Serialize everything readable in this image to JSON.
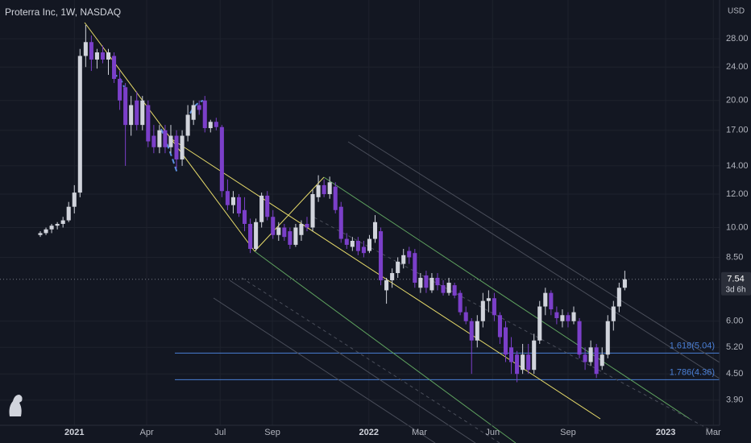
{
  "chart_data": {
    "type": "candlestick",
    "title": "Proterra Inc, 1W, NASDAQ",
    "currency": "USD",
    "log_scale": true,
    "grid": true,
    "up_color": "#d1d4dc",
    "down_color": "#7b3fc9",
    "categories": [
      null,
      null,
      null,
      null,
      null,
      null,
      null,
      null,
      null,
      null,
      null,
      null,
      null,
      null,
      null,
      null,
      null,
      null,
      null,
      null,
      null,
      null,
      null,
      null,
      null,
      null,
      null,
      null,
      null,
      null,
      null,
      null,
      null,
      null,
      null,
      null,
      null,
      null,
      null,
      null,
      null,
      null,
      null,
      null,
      null,
      null,
      null,
      null,
      null,
      null,
      null,
      null,
      null,
      null,
      null,
      null,
      null,
      null,
      null,
      null,
      null,
      null,
      null,
      null,
      null,
      null,
      null,
      null,
      null,
      null,
      null,
      null,
      null,
      null,
      null,
      null,
      null,
      null,
      null,
      null,
      null,
      null,
      null,
      null,
      null,
      null,
      null,
      null,
      null,
      null,
      null,
      null,
      null,
      null,
      null,
      null,
      null,
      null,
      null,
      null,
      null,
      null,
      null,
      null
    ],
    "open": [
      9.6,
      9.7,
      9.9,
      10.1,
      10.2,
      10.4,
      11.2,
      12.1,
      25.5,
      27.5,
      25.0,
      26.0,
      25.0,
      25.5,
      22.5,
      21.5,
      17.5,
      20.0,
      17.5,
      19.5,
      16.5,
      15.5,
      17.0,
      15.5,
      16.5,
      14.5,
      16.5,
      18.0,
      19.5,
      20.0,
      17.2,
      17.8,
      17.3,
      12.2,
      11.3,
      11.8,
      11.0,
      10.2,
      8.9,
      10.3,
      11.9,
      10.6,
      9.6,
      10.0,
      9.8,
      9.1,
      9.6,
      10.2,
      10.0,
      11.8,
      12.6,
      12.0,
      12.5,
      11.2,
      9.4,
      9.0,
      9.3,
      9.0,
      8.8,
      9.4,
      9.8,
      7.1,
      7.5,
      7.8,
      8.2,
      8.8,
      8.7,
      7.2,
      7.7,
      7.1,
      7.6,
      7.3,
      7.0,
      7.3,
      7.0,
      6.3,
      6.0,
      5.4,
      6.0,
      6.7,
      6.8,
      6.2,
      5.8,
      5.2,
      5.0,
      4.6,
      5.0,
      4.6,
      5.4,
      6.5,
      7.0,
      6.3,
      6.0,
      6.2,
      6.0,
      6.0,
      5.0,
      4.8,
      5.2,
      4.7,
      5.0,
      6.0,
      6.5,
      7.2
    ],
    "high": [
      9.8,
      10.0,
      10.2,
      10.3,
      10.6,
      11.5,
      12.6,
      26.5,
      30.2,
      28.5,
      26.5,
      27.0,
      26.5,
      26.0,
      23.5,
      22.0,
      20.5,
      21.0,
      20.5,
      20.0,
      17.5,
      17.5,
      17.5,
      17.5,
      17.0,
      17.0,
      19.5,
      20.0,
      20.0,
      20.5,
      18.0,
      18.2,
      17.5,
      13.0,
      12.2,
      12.0,
      11.8,
      10.5,
      10.5,
      12.1,
      12.2,
      11.0,
      10.3,
      10.2,
      10.0,
      10.2,
      10.4,
      10.6,
      12.3,
      13.3,
      13.0,
      13.2,
      12.8,
      11.5,
      9.7,
      9.5,
      9.5,
      9.3,
      9.6,
      10.7,
      10.0,
      7.6,
      8.0,
      8.5,
      8.9,
      9.0,
      8.9,
      7.8,
      7.9,
      7.8,
      7.8,
      7.5,
      7.6,
      7.4,
      7.1,
      6.5,
      6.1,
      6.2,
      7.0,
      7.1,
      7.0,
      6.3,
      6.0,
      5.5,
      5.1,
      5.3,
      5.3,
      5.6,
      6.7,
      7.2,
      7.1,
      6.5,
      6.4,
      6.3,
      6.5,
      6.1,
      5.2,
      5.4,
      5.3,
      5.2,
      6.2,
      6.7,
      7.4,
      7.9
    ],
    "low": [
      9.5,
      9.6,
      9.7,
      9.9,
      10.0,
      10.3,
      10.8,
      11.8,
      24.0,
      23.5,
      23.8,
      24.5,
      23.0,
      22.0,
      19.0,
      14.0,
      16.5,
      17.0,
      17.0,
      15.5,
      15.0,
      15.0,
      15.0,
      15.0,
      13.8,
      14.0,
      16.0,
      17.5,
      18.5,
      16.8,
      16.8,
      17.0,
      11.8,
      11.0,
      10.8,
      10.6,
      9.8,
      8.7,
      8.8,
      10.0,
      10.4,
      9.4,
      9.3,
      9.3,
      8.9,
      9.0,
      9.3,
      9.8,
      9.8,
      11.5,
      11.8,
      11.7,
      10.8,
      9.2,
      8.9,
      8.8,
      8.6,
      8.5,
      8.7,
      9.2,
      7.3,
      6.6,
      7.2,
      7.6,
      8.0,
      8.2,
      7.2,
      7.0,
      7.0,
      7.0,
      7.1,
      6.9,
      6.9,
      6.8,
      6.2,
      5.9,
      4.5,
      5.2,
      5.8,
      6.3,
      6.0,
      5.3,
      4.8,
      4.5,
      4.3,
      4.5,
      4.5,
      4.5,
      5.3,
      6.2,
      6.2,
      5.9,
      5.8,
      5.8,
      5.9,
      4.9,
      4.6,
      4.7,
      4.4,
      4.6,
      4.9,
      5.7,
      6.3,
      7.1
    ],
    "close": [
      9.7,
      9.9,
      10.1,
      10.2,
      10.4,
      11.2,
      12.1,
      25.5,
      27.5,
      25.0,
      26.0,
      25.0,
      26.0,
      22.5,
      20.0,
      17.5,
      19.5,
      17.5,
      20.0,
      16.0,
      15.5,
      17.0,
      15.5,
      16.5,
      14.5,
      16.5,
      18.5,
      19.5,
      19.0,
      17.2,
      17.8,
      17.3,
      12.2,
      11.3,
      11.8,
      10.8,
      10.2,
      8.9,
      10.3,
      11.9,
      10.6,
      9.6,
      10.0,
      9.5,
      9.1,
      10.0,
      10.2,
      10.0,
      12.0,
      12.6,
      12.0,
      12.8,
      11.0,
      9.4,
      9.1,
      9.3,
      8.8,
      8.7,
      9.4,
      10.3,
      7.5,
      7.5,
      7.8,
      8.3,
      8.6,
      8.5,
      7.4,
      7.6,
      7.2,
      7.6,
      7.3,
      7.0,
      7.4,
      6.9,
      6.3,
      6.0,
      5.4,
      6.0,
      6.7,
      6.8,
      6.2,
      5.5,
      5.0,
      4.8,
      4.5,
      5.0,
      4.6,
      5.4,
      6.5,
      7.0,
      6.4,
      6.1,
      6.2,
      6.0,
      6.3,
      5.0,
      4.8,
      5.2,
      4.5,
      5.0,
      6.0,
      6.5,
      7.2,
      7.54
    ],
    "xlim": [
      -7.1,
      119.7
    ],
    "xticks": [
      {
        "value": 6.0,
        "label": "2021"
      },
      {
        "value": 18.75,
        "label": "Apr"
      },
      {
        "value": 31.7,
        "label": "Jul"
      },
      {
        "value": 40.9,
        "label": "Sep"
      },
      {
        "value": 57.9,
        "label": "2022"
      },
      {
        "value": 66.8,
        "label": "Mar"
      },
      {
        "value": 79.7,
        "label": "Jun"
      },
      {
        "value": 93.0,
        "label": "Sep"
      },
      {
        "value": 110.2,
        "label": "2023"
      },
      {
        "value": 118.6,
        "label": "Mar"
      }
    ],
    "ylim": [
      3.4,
      34.6
    ],
    "yticks": [
      {
        "value": 28,
        "label": "28.00"
      },
      {
        "value": 24,
        "label": "24.00"
      },
      {
        "value": 20,
        "label": "20.00"
      },
      {
        "value": 17,
        "label": "17.00"
      },
      {
        "value": 14,
        "label": "14.00"
      },
      {
        "value": 12,
        "label": "12.00"
      },
      {
        "value": 10,
        "label": "10.00"
      },
      {
        "value": 8.5,
        "label": "8.50"
      },
      {
        "value": 6,
        "label": "6.00"
      },
      {
        "value": 5.2,
        "label": "5.20"
      },
      {
        "value": 4.5,
        "label": "4.50"
      },
      {
        "value": 3.9,
        "label": "3.90"
      }
    ],
    "annotations": [
      {
        "label": "1.618(5.04)",
        "value": 5.04,
        "color": "#4a7fd6"
      },
      {
        "label": "1.786(4.36)",
        "value": 4.36,
        "color": "#4a7fd6"
      }
    ],
    "last_price": 7.54,
    "countdown": "3d 6h"
  }
}
